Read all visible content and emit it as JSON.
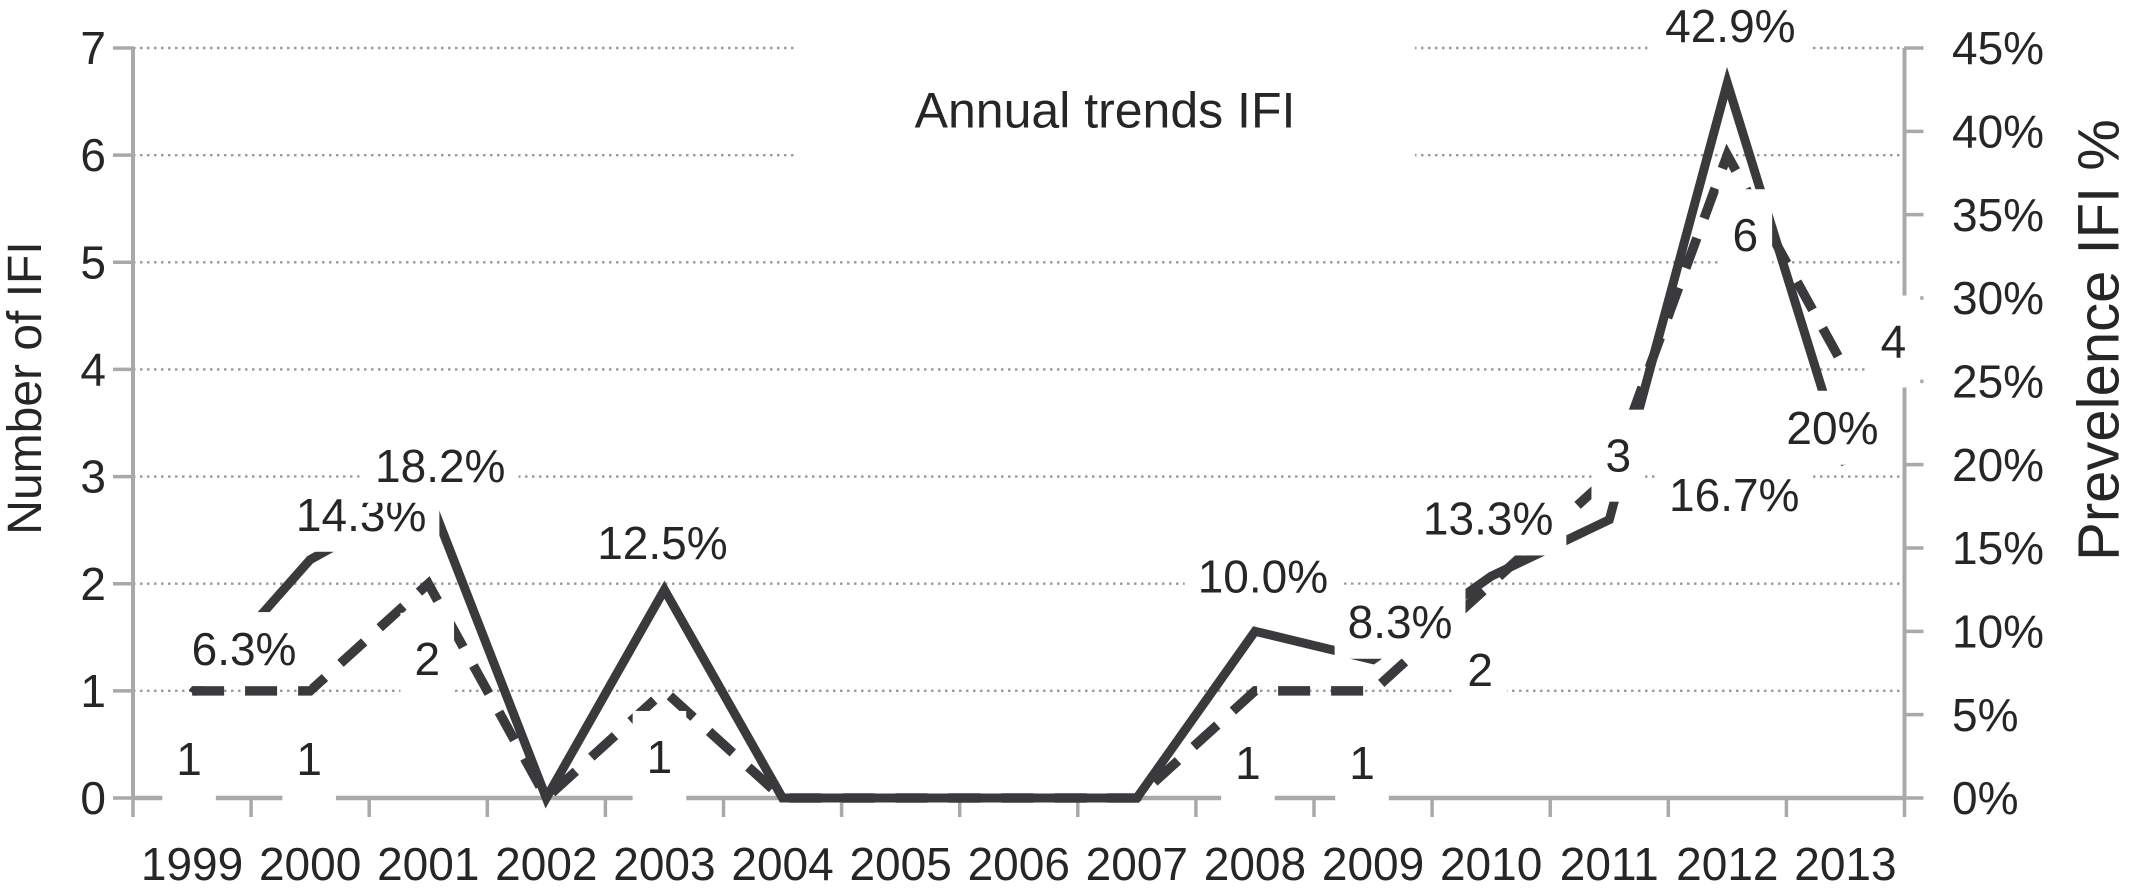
{
  "chart_data": {
    "type": "line",
    "title": "Annual trends IFI",
    "categories": [
      "1999",
      "2000",
      "2001",
      "2002",
      "2003",
      "2004",
      "2005",
      "2006",
      "2007",
      "2008",
      "2009",
      "2010",
      "2011",
      "2012",
      "2013"
    ],
    "left_axis": {
      "label": "Number of IFI",
      "range": [
        0,
        7
      ],
      "ticks": [
        "0",
        "1",
        "2",
        "3",
        "4",
        "5",
        "6",
        "7"
      ]
    },
    "right_axis": {
      "label": "Prevelence IFI %",
      "range": [
        0,
        45
      ],
      "ticks": [
        "0%",
        "5%",
        "10%",
        "15%",
        "20%",
        "25%",
        "30%",
        "35%",
        "40%",
        "45%"
      ]
    },
    "grid": "horizontal-dotted",
    "legend": "none",
    "colors": {
      "series": "#3a3a3c",
      "axis": "#a9a9a9",
      "gridline": "#9a9a9a",
      "text": "#262626",
      "label_background": "#ffffff"
    },
    "series": [
      {
        "name": "Number of IFI",
        "axis": "left",
        "style": "dashed",
        "color": "#3a3a3c",
        "values": [
          1,
          1,
          2,
          0,
          1,
          0,
          0,
          0,
          0,
          1,
          1,
          2,
          3,
          6,
          4
        ],
        "labels": [
          "1",
          "1",
          "2",
          null,
          "1",
          null,
          null,
          null,
          null,
          "1",
          "1",
          "2",
          "3",
          "6",
          "4"
        ]
      },
      {
        "name": "Prevelence IFI %",
        "axis": "right",
        "style": "solid",
        "color": "#3a3a3c",
        "values": [
          6.3,
          14.3,
          18.2,
          0,
          12.5,
          0,
          0,
          0,
          0,
          10.0,
          8.3,
          13.3,
          16.7,
          42.9,
          20
        ],
        "labels": [
          "6.3%",
          "14.3%",
          "18.2%",
          null,
          "12.5%",
          null,
          null,
          null,
          null,
          "10.0%",
          "8.3%",
          "13.3%",
          "16.7%",
          "42.9%",
          "20%"
        ]
      }
    ]
  }
}
